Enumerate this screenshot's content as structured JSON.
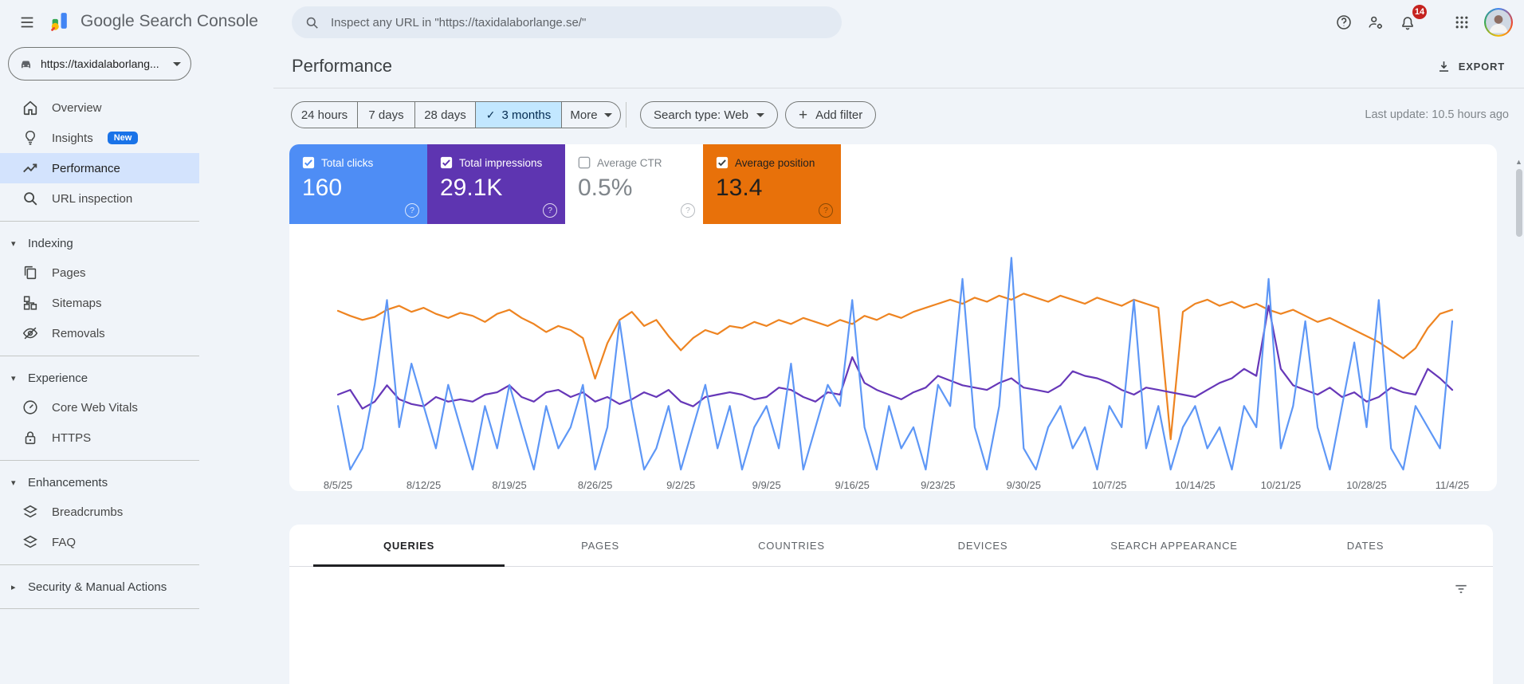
{
  "topbar": {
    "app_title": "Google Search Console",
    "search_placeholder": "Inspect any URL in \"https://taxidalaborlange.se/\"",
    "notification_count": "14",
    "icons": [
      "menu-icon",
      "search-console-logo",
      "search-icon",
      "help-icon",
      "manage-users-icon",
      "notifications-icon",
      "apps-grid-icon",
      "avatar"
    ]
  },
  "sidebar": {
    "property": {
      "label": "https://taxidalaborlang...",
      "favicon": "car-icon"
    },
    "primary": [
      {
        "label": "Overview",
        "icon": "home-icon"
      },
      {
        "label": "Insights",
        "icon": "lightbulb-icon",
        "badge": "New"
      },
      {
        "label": "Performance",
        "icon": "performance-icon",
        "active": true
      },
      {
        "label": "URL inspection",
        "icon": "search-icon"
      }
    ],
    "sections": [
      {
        "header": "Indexing",
        "expanded": true,
        "items": [
          {
            "label": "Pages",
            "icon": "pages-icon"
          },
          {
            "label": "Sitemaps",
            "icon": "sitemaps-icon"
          },
          {
            "label": "Removals",
            "icon": "removals-icon"
          }
        ]
      },
      {
        "header": "Experience",
        "expanded": true,
        "items": [
          {
            "label": "Core Web Vitals",
            "icon": "core-web-vitals-icon"
          },
          {
            "label": "HTTPS",
            "icon": "https-icon"
          }
        ]
      },
      {
        "header": "Enhancements",
        "expanded": true,
        "items": [
          {
            "label": "Breadcrumbs",
            "icon": "breadcrumbs-icon"
          },
          {
            "label": "FAQ",
            "icon": "faq-icon"
          }
        ]
      },
      {
        "header": "Security & Manual Actions",
        "expanded": false,
        "items": []
      }
    ]
  },
  "main": {
    "page_title": "Performance",
    "export_label": "EXPORT",
    "filters": {
      "date_ranges": [
        "24 hours",
        "7 days",
        "28 days",
        "3 months"
      ],
      "selected_range": "3 months",
      "more_label": "More",
      "search_type_label": "Search type: Web",
      "add_filter_label": "Add filter",
      "last_update": "Last update: 10.5 hours ago"
    },
    "cards": [
      {
        "label": "Total clicks",
        "value": "160",
        "checked": true,
        "bg": "#4e8df5",
        "text_color": "#ffffff",
        "check_color": "#4e8df5",
        "help_color": "rgba(255,255,255,0.8)"
      },
      {
        "label": "Total impressions",
        "value": "29.1K",
        "checked": true,
        "bg": "#5e35b1",
        "text_color": "#ffffff",
        "check_color": "#5e35b1",
        "help_color": "rgba(255,255,255,0.8)"
      },
      {
        "label": "Average CTR",
        "value": "0.5%",
        "checked": false,
        "bg": "#ffffff",
        "text_color": "#80868b",
        "check_color": "#9aa0a6",
        "help_color": "#b6babf"
      },
      {
        "label": "Average position",
        "value": "13.4",
        "checked": true,
        "bg": "#e8710a",
        "text_color": "#1f1f1f",
        "check_color": "#3c4043",
        "help_color": "rgba(60,40,0,0.55)"
      }
    ],
    "tabs": [
      "QUERIES",
      "PAGES",
      "COUNTRIES",
      "DEVICES",
      "SEARCH APPEARANCE",
      "DATES"
    ],
    "active_tab": "QUERIES"
  },
  "colors": {
    "page_bg": "#f0f4f9",
    "selected_chip_bg": "#c2e7ff",
    "sidebar_selected_bg": "#d3e3fd",
    "badge_red": "#c5221f",
    "new_badge_blue": "#1a73e8",
    "clicks_blue": "#5e97f6",
    "impressions_purple": "#6637b8",
    "position_orange": "#ee8421"
  },
  "chart_data": {
    "type": "line",
    "title": "",
    "xlabel": "",
    "ylabel": "",
    "grid": "off",
    "legend_position": "none",
    "x_daily_range": {
      "start": "8/5/25",
      "end": "11/4/25",
      "points": 92
    },
    "x_tick_labels": [
      "8/5/25",
      "8/12/25",
      "8/19/25",
      "8/26/25",
      "9/2/25",
      "9/9/25",
      "9/16/25",
      "9/23/25",
      "9/30/25",
      "10/7/25",
      "10/14/25",
      "10/21/25",
      "10/28/25",
      "11/4/25"
    ],
    "totals": {
      "clicks": "160",
      "impressions": "29.1K",
      "ctr": "0.5%",
      "position": "13.4"
    },
    "series": [
      {
        "name": "clicks",
        "color": "#5e97f6",
        "axis_min": 0,
        "axis_max": 10.5,
        "inverted": false,
        "values": [
          3,
          0,
          1,
          4,
          8,
          2,
          5,
          3,
          1,
          4,
          2,
          0,
          3,
          1,
          4,
          2,
          0,
          3,
          1,
          2,
          4,
          0,
          2,
          7,
          3,
          0,
          1,
          3,
          0,
          2,
          4,
          1,
          3,
          0,
          2,
          3,
          1,
          5,
          0,
          2,
          4,
          3,
          8,
          2,
          0,
          3,
          1,
          2,
          0,
          4,
          3,
          9,
          2,
          0,
          3,
          10,
          1,
          0,
          2,
          3,
          1,
          2,
          0,
          3,
          2,
          8,
          1,
          3,
          0,
          2,
          3,
          1,
          2,
          0,
          3,
          2,
          9,
          1,
          3,
          7,
          2,
          0,
          3,
          6,
          2,
          8,
          1,
          0,
          3,
          2,
          1,
          7
        ]
      },
      {
        "name": "impressions",
        "color": "#6637b8",
        "axis_min": 0,
        "axis_max": 950,
        "inverted": false,
        "values": [
          320,
          340,
          260,
          290,
          360,
          300,
          280,
          270,
          310,
          290,
          300,
          290,
          320,
          330,
          360,
          310,
          290,
          330,
          340,
          310,
          330,
          290,
          310,
          280,
          300,
          330,
          310,
          340,
          290,
          270,
          310,
          320,
          330,
          320,
          300,
          310,
          350,
          340,
          310,
          290,
          330,
          320,
          480,
          370,
          340,
          320,
          300,
          330,
          350,
          400,
          380,
          360,
          350,
          340,
          370,
          390,
          350,
          340,
          330,
          360,
          420,
          400,
          390,
          370,
          340,
          320,
          350,
          340,
          330,
          320,
          310,
          340,
          370,
          390,
          430,
          400,
          700,
          430,
          360,
          340,
          320,
          350,
          310,
          330,
          290,
          310,
          350,
          330,
          320,
          430,
          390,
          340
        ]
      },
      {
        "name": "position",
        "color": "#ee8421",
        "axis_min": 6,
        "axis_max": 28,
        "inverted": true,
        "values": [
          12.3,
          12.8,
          13.2,
          12.9,
          12.2,
          11.8,
          12.4,
          12.0,
          12.6,
          13.0,
          12.5,
          12.8,
          13.4,
          12.6,
          12.2,
          13.0,
          13.6,
          14.4,
          13.8,
          14.2,
          15.0,
          19.0,
          15.5,
          13.2,
          12.4,
          13.8,
          13.2,
          14.8,
          16.2,
          15.0,
          14.2,
          14.6,
          13.8,
          14.0,
          13.4,
          13.8,
          13.2,
          13.6,
          13.0,
          13.4,
          13.8,
          13.2,
          13.6,
          12.8,
          13.2,
          12.6,
          13.0,
          12.4,
          12.0,
          11.6,
          11.2,
          11.6,
          11.0,
          11.4,
          10.8,
          11.2,
          10.6,
          11.0,
          11.4,
          10.8,
          11.2,
          11.6,
          11.0,
          11.4,
          11.8,
          11.2,
          11.6,
          12.0,
          25.0,
          12.4,
          11.6,
          11.2,
          11.8,
          11.4,
          12.0,
          11.6,
          12.2,
          12.6,
          12.2,
          12.8,
          13.4,
          13.0,
          13.6,
          14.2,
          14.8,
          15.4,
          16.2,
          17.0,
          16.0,
          14.0,
          12.6,
          12.2
        ]
      }
    ]
  }
}
